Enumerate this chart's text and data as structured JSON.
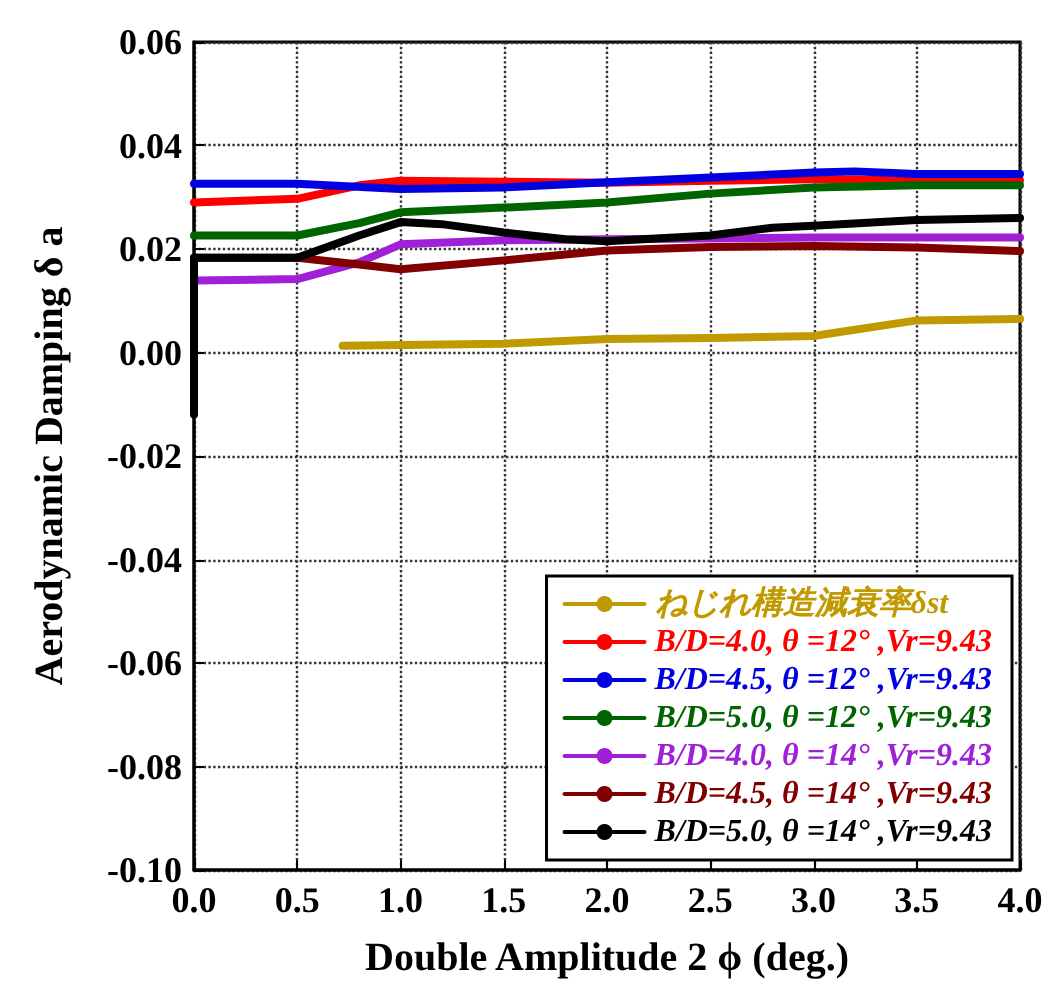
{
  "chart_data": {
    "type": "line",
    "xlabel": "Double Amplitude 2 ϕ (deg.)",
    "ylabel": "Aerodynamic Damping δ a",
    "xlim": [
      0,
      4
    ],
    "ylim": [
      -0.1,
      0.06
    ],
    "xticks": [
      {
        "value": 0,
        "label": "0.0"
      },
      {
        "value": 0.5,
        "label": "0.5"
      },
      {
        "value": 1,
        "label": "1.0"
      },
      {
        "value": 1.5,
        "label": "1.5"
      },
      {
        "value": 2,
        "label": "2.0"
      },
      {
        "value": 2.5,
        "label": "2.5"
      },
      {
        "value": 3,
        "label": "3.0"
      },
      {
        "value": 3.5,
        "label": "3.5"
      },
      {
        "value": 4,
        "label": "4.0"
      }
    ],
    "yticks": [
      {
        "value": -0.1,
        "label": "-0.10"
      },
      {
        "value": -0.08,
        "label": "-0.08"
      },
      {
        "value": -0.06,
        "label": "-0.06"
      },
      {
        "value": -0.04,
        "label": "-0.04"
      },
      {
        "value": -0.02,
        "label": "-0.02"
      },
      {
        "value": 0,
        "label": "0.00"
      },
      {
        "value": 0.02,
        "label": "0.02"
      },
      {
        "value": 0.04,
        "label": "0.04"
      },
      {
        "value": 0.06,
        "label": "0.06"
      }
    ],
    "grid": true,
    "legend": "bottom right",
    "marker": "none",
    "line_style": "solid",
    "series": [
      {
        "name": "ねじれ構造減衰率δst",
        "color": "#c09a00",
        "x": [
          0.72,
          1.5,
          2.0,
          2.5,
          3.0,
          3.5,
          4.0
        ],
        "values": [
          0.0013,
          0.0017,
          0.0026,
          0.0028,
          0.0032,
          0.0062,
          0.0065
        ]
      },
      {
        "name": "B/D=4.0, θ =12° ,Vr=9.43",
        "color": "#ff0000",
        "x": [
          0,
          0.5,
          0.8,
          1.0,
          1.5,
          2.0,
          2.5,
          3.0,
          4.0
        ],
        "values": [
          0.029,
          0.0297,
          0.0323,
          0.0332,
          0.033,
          0.0328,
          0.0332,
          0.0335,
          0.0333
        ]
      },
      {
        "name": "B/D=4.5, θ =12° ,Vr=9.43",
        "color": "#0000e0",
        "x": [
          0,
          0.5,
          1.0,
          1.5,
          2.0,
          2.5,
          3.0,
          3.2,
          3.5,
          4.0
        ],
        "values": [
          0.0326,
          0.0326,
          0.0316,
          0.0319,
          0.0329,
          0.0338,
          0.0348,
          0.035,
          0.0345,
          0.0345
        ]
      },
      {
        "name": "B/D=5.0, θ =12° ,Vr=9.43",
        "color": "#006400",
        "x": [
          0,
          0.5,
          0.8,
          1.0,
          1.5,
          2.0,
          2.5,
          3.0,
          3.5,
          4.0
        ],
        "values": [
          0.0226,
          0.0226,
          0.025,
          0.0271,
          0.028,
          0.029,
          0.0307,
          0.0319,
          0.0323,
          0.0323
        ]
      },
      {
        "name": "B/D=4.0, θ =14° ,Vr=9.43",
        "color": "#a020d8",
        "x": [
          0,
          0.5,
          0.8,
          1.0,
          1.5,
          2.0,
          3.0,
          4.0
        ],
        "values": [
          0.0139,
          0.0142,
          0.0174,
          0.0209,
          0.0217,
          0.0219,
          0.0222,
          0.0222
        ]
      },
      {
        "name": "B/D=4.5, θ =14° ,Vr=9.43",
        "color": "#800000",
        "x": [
          0,
          0.5,
          0.8,
          1.0,
          1.5,
          2.0,
          2.5,
          3.0,
          3.5,
          4.0
        ],
        "values": [
          0.0183,
          0.0183,
          0.017,
          0.0161,
          0.0178,
          0.0197,
          0.0204,
          0.0206,
          0.0203,
          0.0196
        ]
      },
      {
        "name": "B/D=5.0, θ =14° ,Vr=9.43",
        "color": "#000000",
        "x": [
          0,
          0,
          0.5,
          0.8,
          1.0,
          1.2,
          1.5,
          1.8,
          2.0,
          2.5,
          2.8,
          3.0,
          3.5,
          4.0
        ],
        "values": [
          -0.012,
          0.0183,
          0.0183,
          0.0226,
          0.0252,
          0.0248,
          0.0232,
          0.0219,
          0.0215,
          0.0226,
          0.0241,
          0.0245,
          0.0256,
          0.026
        ]
      }
    ]
  }
}
